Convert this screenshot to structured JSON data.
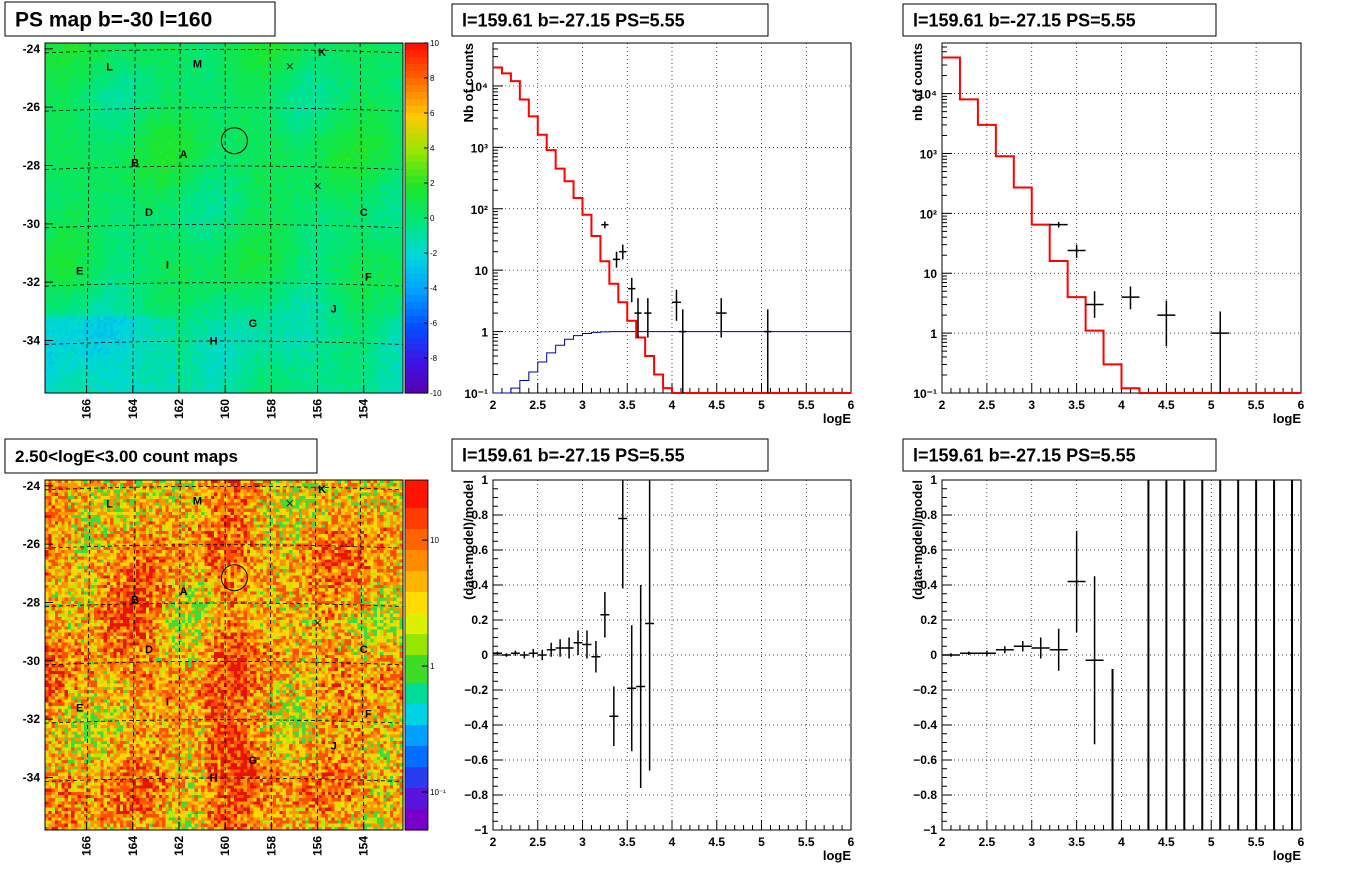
{
  "chart_data": [
    {
      "panel": "ps_map",
      "type": "heatmap",
      "title": "PS map b=-30 l=160",
      "x_axis": {
        "reversed": true,
        "ticks": [
          166,
          164,
          162,
          160,
          158,
          156,
          154
        ],
        "lim": [
          167.8,
          152.3
        ]
      },
      "y_axis": {
        "ticks": [
          -24,
          -26,
          -28,
          -30,
          -32,
          -34
        ],
        "lim": [
          -35.8,
          -23.8
        ]
      },
      "colorbar": {
        "scale": "linear",
        "ticks": [
          10,
          8,
          6,
          4,
          2,
          0,
          -2,
          -4,
          -6,
          -8,
          -10
        ],
        "range": [
          -10,
          10
        ]
      },
      "markers": [
        {
          "name": "L",
          "x": 165.0,
          "y": -24.6
        },
        {
          "name": "M",
          "x": 161.2,
          "y": -24.5
        },
        {
          "name": "K",
          "x": 155.8,
          "y": -24.1
        },
        {
          "name": "A",
          "x": 161.8,
          "y": -27.6
        },
        {
          "name": "B",
          "x": 163.9,
          "y": -27.9
        },
        {
          "name": "D",
          "x": 163.3,
          "y": -29.6
        },
        {
          "name": "C",
          "x": 154.0,
          "y": -29.6
        },
        {
          "name": "I",
          "x": 162.5,
          "y": -31.4
        },
        {
          "name": "E",
          "x": 166.3,
          "y": -31.6
        },
        {
          "name": "F",
          "x": 153.8,
          "y": -31.8
        },
        {
          "name": "J",
          "x": 155.3,
          "y": -32.9
        },
        {
          "name": "G",
          "x": 158.8,
          "y": -33.4
        },
        {
          "name": "H",
          "x": 160.5,
          "y": -34.0
        }
      ],
      "crosses": [
        {
          "x": 157.2,
          "y": -24.6
        },
        {
          "x": 156.0,
          "y": -28.7
        }
      ],
      "circle": {
        "x": 159.6,
        "y": -27.15
      }
    },
    {
      "panel": "count_map",
      "type": "heatmap",
      "title": "2.50<logE<3.00 count maps",
      "x_axis": {
        "reversed": true,
        "ticks": [
          166,
          164,
          162,
          160,
          158,
          156,
          154
        ],
        "lim": [
          167.8,
          152.3
        ]
      },
      "y_axis": {
        "ticks": [
          -24,
          -26,
          -28,
          -30,
          -32,
          -34
        ],
        "lim": [
          -35.8,
          -23.8
        ]
      },
      "colorbar": {
        "scale": "log",
        "tick_labels": [
          "10",
          "1",
          "10⁻¹"
        ],
        "tick_values": [
          10,
          1,
          0.1
        ],
        "range": [
          0.05,
          30
        ]
      },
      "markers": [
        {
          "name": "L",
          "x": 165.0,
          "y": -24.6
        },
        {
          "name": "M",
          "x": 161.2,
          "y": -24.5
        },
        {
          "name": "K",
          "x": 155.8,
          "y": -24.1
        },
        {
          "name": "A",
          "x": 161.8,
          "y": -27.6
        },
        {
          "name": "B",
          "x": 163.9,
          "y": -27.9
        },
        {
          "name": "D",
          "x": 163.3,
          "y": -29.6
        },
        {
          "name": "C",
          "x": 154.0,
          "y": -29.6
        },
        {
          "name": "I",
          "x": 162.5,
          "y": -31.4
        },
        {
          "name": "E",
          "x": 166.3,
          "y": -31.6
        },
        {
          "name": "F",
          "x": 153.8,
          "y": -31.8
        },
        {
          "name": "J",
          "x": 155.3,
          "y": -32.9
        },
        {
          "name": "G",
          "x": 158.8,
          "y": -33.4
        },
        {
          "name": "H",
          "x": 160.5,
          "y": -34.0
        }
      ],
      "crosses": [
        {
          "x": 157.2,
          "y": -24.6
        },
        {
          "x": 156.0,
          "y": -28.7
        }
      ],
      "circle": {
        "x": 159.6,
        "y": -27.15
      }
    },
    {
      "panel": "spectrum_fine",
      "type": "line",
      "title": "l=159.61 b=-27.15 PS=5.55",
      "xlabel": "logE",
      "ylabel": "Nb of counts",
      "yscale": "log",
      "xlim": [
        2,
        6
      ],
      "ylim": [
        0.1,
        50000
      ],
      "x_ticks": [
        2,
        2.5,
        3,
        3.5,
        4,
        4.5,
        5,
        5.5,
        6
      ],
      "y_ticks": [
        {
          "v": 0.1,
          "t": "10⁻¹"
        },
        {
          "v": 1,
          "t": "1"
        },
        {
          "v": 10,
          "t": "10"
        },
        {
          "v": 100,
          "t": "10²"
        },
        {
          "v": 1000,
          "t": "10³"
        },
        {
          "v": 10000,
          "t": "10⁴"
        }
      ],
      "model": {
        "color": "#ff0000",
        "edges": [
          2.0,
          2.1,
          2.2,
          2.3,
          2.4,
          2.5,
          2.6,
          2.7,
          2.8,
          2.9,
          3.0,
          3.1,
          3.2,
          3.3,
          3.4,
          3.5,
          3.6,
          3.7,
          3.8,
          3.9,
          4.0,
          6.0
        ],
        "values": [
          20000,
          16000,
          12000,
          6000,
          3200,
          1600,
          900,
          450,
          280,
          150,
          80,
          36,
          14,
          6,
          3,
          1.5,
          0.8,
          0.4,
          0.2,
          0.12,
          0.1
        ]
      },
      "psf_model": {
        "color": "#0000aa",
        "edges": [
          2.0,
          2.2,
          2.3,
          2.4,
          2.5,
          2.6,
          2.7,
          2.8,
          2.9,
          3.0,
          3.1,
          3.2,
          3.3,
          3.4,
          6.0
        ],
        "values": [
          0.1,
          0.12,
          0.16,
          0.22,
          0.32,
          0.45,
          0.6,
          0.75,
          0.86,
          0.93,
          0.97,
          0.99,
          1.0,
          1.0
        ]
      },
      "data": [
        {
          "x": 3.25,
          "y": 55,
          "hw": 0.04,
          "lo": 48,
          "hi": 62
        },
        {
          "x": 3.38,
          "y": 15,
          "hw": 0.04,
          "lo": 11,
          "hi": 20
        },
        {
          "x": 3.45,
          "y": 20,
          "hw": 0.04,
          "lo": 15,
          "hi": 26
        },
        {
          "x": 3.55,
          "y": 5,
          "hw": 0.04,
          "lo": 3,
          "hi": 7.5
        },
        {
          "x": 3.62,
          "y": 2,
          "hw": 0.04,
          "lo": 0.8,
          "hi": 3.5
        },
        {
          "x": 3.73,
          "y": 2,
          "hw": 0.04,
          "lo": 0.8,
          "hi": 3.5
        },
        {
          "x": 4.05,
          "y": 3,
          "hw": 0.05,
          "lo": 1.5,
          "hi": 4.8
        },
        {
          "x": 4.12,
          "y": 1,
          "hw": 0.04,
          "lo": 0.1,
          "hi": 2.3
        },
        {
          "x": 4.55,
          "y": 2,
          "hw": 0.06,
          "lo": 0.8,
          "hi": 3.5
        },
        {
          "x": 5.07,
          "y": 1,
          "hw": 0.04,
          "lo": 0.1,
          "hi": 2.3
        }
      ]
    },
    {
      "panel": "spectrum_coarse",
      "type": "line",
      "title": "l=159.61 b=-27.15 PS=5.55",
      "xlabel": "logE",
      "ylabel": "nb of counts",
      "yscale": "log",
      "xlim": [
        2,
        6
      ],
      "ylim": [
        0.1,
        70000
      ],
      "x_ticks": [
        2,
        2.5,
        3,
        3.5,
        4,
        4.5,
        5,
        5.5,
        6
      ],
      "y_ticks": [
        {
          "v": 0.1,
          "t": "10⁻¹"
        },
        {
          "v": 1,
          "t": "1"
        },
        {
          "v": 10,
          "t": "10"
        },
        {
          "v": 100,
          "t": "10²"
        },
        {
          "v": 1000,
          "t": "10³"
        },
        {
          "v": 10000,
          "t": "10⁴"
        }
      ],
      "model": {
        "color": "#ff0000",
        "edges": [
          2.0,
          2.2,
          2.4,
          2.6,
          2.8,
          3.0,
          3.2,
          3.4,
          3.6,
          3.8,
          4.0,
          4.2,
          4.4,
          6.0
        ],
        "values": [
          40000,
          8000,
          3000,
          900,
          270,
          65,
          16,
          4,
          1.1,
          0.3,
          0.12,
          0.1,
          0.1
        ]
      },
      "data": [
        {
          "x": 3.3,
          "y": 65,
          "hw": 0.1,
          "lo": 58,
          "hi": 72
        },
        {
          "x": 3.5,
          "y": 24,
          "hw": 0.1,
          "lo": 18,
          "hi": 30
        },
        {
          "x": 3.7,
          "y": 3,
          "hw": 0.1,
          "lo": 1.8,
          "hi": 5
        },
        {
          "x": 4.1,
          "y": 4,
          "hw": 0.1,
          "lo": 2.5,
          "hi": 6
        },
        {
          "x": 4.5,
          "y": 2,
          "hw": 0.1,
          "lo": 0.6,
          "hi": 3.5
        },
        {
          "x": 5.1,
          "y": 1,
          "hw": 0.1,
          "lo": 0.1,
          "hi": 2.3
        }
      ]
    },
    {
      "panel": "residual_fine",
      "type": "scatter",
      "title": "l=159.61 b=-27.15 PS=5.55",
      "xlabel": "logE",
      "ylabel": "(data-model)/model",
      "xlim": [
        2,
        6
      ],
      "ylim": [
        -1,
        1
      ],
      "x_ticks": [
        2,
        2.5,
        3,
        3.5,
        4,
        4.5,
        5,
        5.5,
        6
      ],
      "y_ticks": [
        -1,
        -0.8,
        -0.6,
        -0.4,
        -0.2,
        0,
        0.2,
        0.4,
        0.6,
        0.8,
        1
      ],
      "data": [
        {
          "x": 2.05,
          "y": 0.01,
          "hw": 0.05,
          "e": 0.01
        },
        {
          "x": 2.15,
          "y": 0.0,
          "hw": 0.05,
          "e": 0.01
        },
        {
          "x": 2.25,
          "y": 0.01,
          "hw": 0.05,
          "e": 0.015
        },
        {
          "x": 2.35,
          "y": 0.0,
          "hw": 0.05,
          "e": 0.02
        },
        {
          "x": 2.45,
          "y": 0.01,
          "hw": 0.05,
          "e": 0.025
        },
        {
          "x": 2.55,
          "y": 0.0,
          "hw": 0.05,
          "e": 0.03
        },
        {
          "x": 2.65,
          "y": 0.03,
          "hw": 0.05,
          "e": 0.04
        },
        {
          "x": 2.75,
          "y": 0.04,
          "hw": 0.05,
          "e": 0.05
        },
        {
          "x": 2.85,
          "y": 0.04,
          "hw": 0.05,
          "e": 0.06
        },
        {
          "x": 2.95,
          "y": 0.07,
          "hw": 0.05,
          "e": 0.07
        },
        {
          "x": 3.05,
          "y": 0.06,
          "hw": 0.05,
          "e": 0.08
        },
        {
          "x": 3.15,
          "y": -0.01,
          "hw": 0.05,
          "e": 0.09
        },
        {
          "x": 3.25,
          "y": 0.23,
          "hw": 0.05,
          "e": 0.13
        },
        {
          "x": 3.35,
          "y": -0.35,
          "hw": 0.05,
          "e": 0.17
        },
        {
          "x": 3.45,
          "y": 0.78,
          "hw": 0.05,
          "e": 0.4
        },
        {
          "x": 3.55,
          "y": -0.19,
          "hw": 0.05,
          "e": 0.36
        },
        {
          "x": 3.65,
          "y": -0.18,
          "hw": 0.05,
          "e": 0.58
        },
        {
          "x": 3.75,
          "y": 0.18,
          "hw": 0.05,
          "e": 0.84
        }
      ]
    },
    {
      "panel": "residual_coarse",
      "type": "scatter",
      "title": "l=159.61 b=-27.15 PS=5.55",
      "xlabel": "logE",
      "ylabel": "(data-model)/model",
      "xlim": [
        2,
        6
      ],
      "ylim": [
        -1,
        1
      ],
      "x_ticks": [
        2,
        2.5,
        3,
        3.5,
        4,
        4.5,
        5,
        5.5,
        6
      ],
      "y_ticks": [
        -1,
        -0.8,
        -0.6,
        -0.4,
        -0.2,
        0,
        0.2,
        0.4,
        0.6,
        0.8,
        1
      ],
      "data": [
        {
          "x": 2.1,
          "y": 0.0,
          "hw": 0.1,
          "e": 0.01
        },
        {
          "x": 2.3,
          "y": 0.01,
          "hw": 0.1,
          "e": 0.01
        },
        {
          "x": 2.5,
          "y": 0.01,
          "hw": 0.1,
          "e": 0.015
        },
        {
          "x": 2.7,
          "y": 0.03,
          "hw": 0.1,
          "e": 0.02
        },
        {
          "x": 2.9,
          "y": 0.05,
          "hw": 0.1,
          "e": 0.03
        },
        {
          "x": 3.1,
          "y": 0.04,
          "hw": 0.1,
          "e": 0.06
        },
        {
          "x": 3.3,
          "y": 0.03,
          "hw": 0.1,
          "e": 0.12
        },
        {
          "x": 3.5,
          "y": 0.42,
          "hw": 0.1,
          "e": 0.29
        },
        {
          "x": 3.7,
          "y": -0.03,
          "hw": 0.1,
          "e": 0.48
        }
      ],
      "full_bars_x": [
        3.9,
        4.3,
        4.5,
        4.7,
        4.9,
        5.1,
        5.3,
        5.5,
        5.7,
        5.9
      ]
    }
  ]
}
